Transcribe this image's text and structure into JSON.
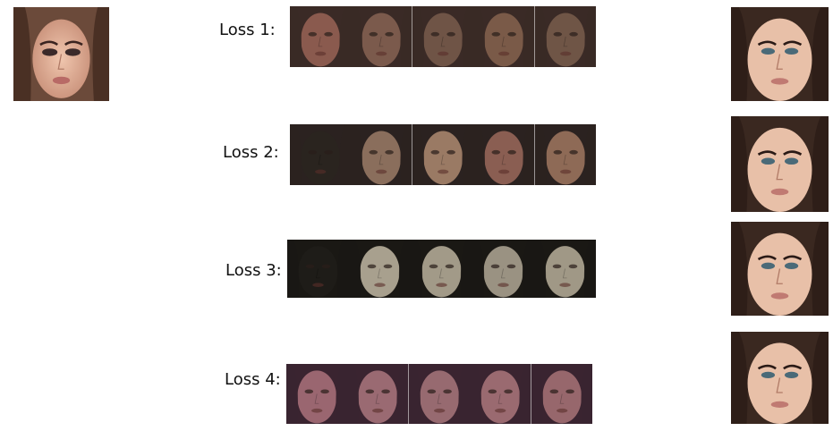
{
  "rows": [
    {
      "label": "Loss 1:"
    },
    {
      "label": "Loss 2:"
    },
    {
      "label": "Loss 3:"
    },
    {
      "label": "Loss 4:"
    }
  ],
  "palettes": {
    "loss1": [
      "#8a5a4e",
      "#7b5a4c",
      "#6f5446",
      "#7a5a48",
      "#6f5546"
    ],
    "loss2": [
      "#2a241f",
      "#8a6e5c",
      "#9a7a64",
      "#8a5e52",
      "#8e6a56"
    ],
    "loss3": [
      "#1e1c18",
      "#a8a08e",
      "#a29a88",
      "#9a9282",
      "#a09886"
    ],
    "loss4": [
      "#9a6670",
      "#9a6a72",
      "#976a70",
      "#9a6a70",
      "#97676c"
    ]
  }
}
